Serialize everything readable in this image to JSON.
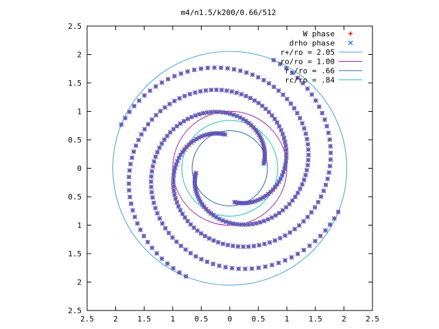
{
  "chart_data": {
    "type": "scatter",
    "title": "m4/n1.5/k200/0.66/512",
    "xlabel": "",
    "ylabel": "",
    "xlim": [
      -2.5,
      2.5
    ],
    "ylim": [
      -2.5,
      2.5
    ],
    "x_tick_values": [
      -2.5,
      -2,
      -1.5,
      -1,
      -0.5,
      0,
      0.5,
      1,
      1.5,
      2,
      2.5
    ],
    "x_tick_labels": [
      "2.5",
      "2",
      "1.5",
      "1",
      "0.5",
      "0",
      "0.5",
      "1",
      "1.5",
      "2",
      "2.5"
    ],
    "y_tick_values": [
      2.5,
      2,
      1.5,
      1,
      0.5,
      0,
      -0.5,
      -1,
      -1.5,
      -2,
      -2.5
    ],
    "y_tick_labels": [
      "2.5",
      "2",
      "1.5",
      "1",
      "0.5",
      "0",
      "0.5",
      "1",
      "1.5",
      "2",
      "2.5"
    ],
    "grid": false,
    "legend_position": "top-right",
    "series": [
      {
        "name": "W phase",
        "kind": "points",
        "marker": "plus",
        "color": "#ff0000"
      },
      {
        "name": "drho phase",
        "kind": "points",
        "marker": "x",
        "color": "#1f77ff"
      },
      {
        "name": "r+/ro = 2.05",
        "kind": "circle",
        "radius": 2.05,
        "color": "#3ca0d8"
      },
      {
        "name": "ro/ro = 1.00",
        "kind": "circle",
        "radius": 1.0,
        "color": "#a020a0"
      },
      {
        "name": "r-/ro = .66",
        "kind": "circle",
        "radius": 0.66,
        "color": "#2060b0"
      },
      {
        "name": "rc/ro = .84",
        "kind": "circle",
        "radius": 0.84,
        "color": "#20c0c0"
      }
    ],
    "spiral_arms": [
      {
        "r_start": 0.6,
        "r_end": 2.05,
        "theta_start_deg": 98,
        "winding_deg": 330
      },
      {
        "r_start": 0.6,
        "r_end": 2.05,
        "theta_start_deg": 188,
        "winding_deg": 330
      },
      {
        "r_start": 0.6,
        "r_end": 2.05,
        "theta_start_deg": 278,
        "winding_deg": 330
      },
      {
        "r_start": 0.6,
        "r_end": 2.05,
        "theta_start_deg": 8,
        "winding_deg": 330
      }
    ]
  }
}
